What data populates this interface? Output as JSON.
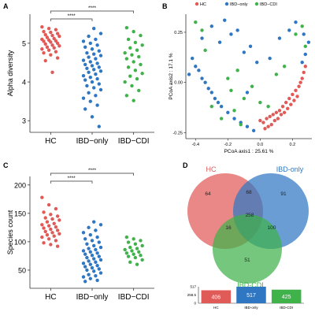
{
  "panels": {
    "A": {
      "letter": "A"
    },
    "B": {
      "letter": "B"
    },
    "C": {
      "letter": "C"
    },
    "D": {
      "letter": "D"
    }
  },
  "colors": {
    "HC": "#e05a58",
    "IBD-only": "#2f77c2",
    "IBD-CDI": "#3fb24a"
  },
  "chart_data": [
    {
      "panel": "A",
      "type": "scatter",
      "title": "",
      "xlabel": "",
      "ylabel": "Alpha diversity",
      "categories": [
        "HC",
        "IBD−only",
        "IBD−CDI"
      ],
      "ylim": [
        2.7,
        5.75
      ],
      "yticks": [
        "3",
        "4",
        "5"
      ],
      "yticks_values": [
        3,
        4,
        5
      ],
      "significance": [
        {
          "from": 0,
          "to": 1,
          "label": "****"
        },
        {
          "from": 0,
          "to": 2,
          "label": "****"
        }
      ],
      "series": [
        {
          "group": "HC",
          "values": [
            5.42,
            5.38,
            5.35,
            5.3,
            5.28,
            5.25,
            5.22,
            5.2,
            5.18,
            5.15,
            5.12,
            5.1,
            5.08,
            5.06,
            5.05,
            5.03,
            5.0,
            4.98,
            4.95,
            4.93,
            4.9,
            4.88,
            4.85,
            4.82,
            4.78,
            4.75,
            4.7,
            4.62,
            4.55,
            4.25
          ]
        },
        {
          "group": "IBD-only",
          "values": [
            5.38,
            5.25,
            5.18,
            5.1,
            5.05,
            5.0,
            4.95,
            4.9,
            4.85,
            4.8,
            4.75,
            4.72,
            4.68,
            4.64,
            4.6,
            4.56,
            4.52,
            4.48,
            4.45,
            4.42,
            4.38,
            4.35,
            4.32,
            4.28,
            4.25,
            4.2,
            4.16,
            4.12,
            4.08,
            4.05,
            4.0,
            3.95,
            3.9,
            3.85,
            3.8,
            3.72,
            3.65,
            3.58,
            3.5,
            3.4,
            3.3,
            3.1,
            2.85
          ]
        },
        {
          "group": "IBD-CDI",
          "values": [
            5.4,
            5.3,
            5.2,
            5.1,
            5.02,
            4.95,
            4.88,
            4.82,
            4.75,
            4.7,
            4.65,
            4.6,
            4.52,
            4.45,
            4.38,
            4.3,
            4.22,
            4.15,
            4.08,
            4.0,
            3.9,
            3.78,
            3.65,
            3.52
          ]
        }
      ]
    },
    {
      "panel": "B",
      "type": "scatter",
      "title": "",
      "xlabel": "PCoA axis1 : 25.61 %",
      "ylabel": "PCoA axis2 : 17.1 %",
      "legend": [
        "HC",
        "IBD−only",
        "IBD−CDI"
      ],
      "legend_placement": "top",
      "xlim": [
        -0.46,
        0.32
      ],
      "ylim": [
        -0.28,
        0.34
      ],
      "xticks": [
        "-0.4",
        "-0.2",
        "0.0",
        "0.2"
      ],
      "xticks_values": [
        -0.4,
        -0.2,
        0.0,
        0.2
      ],
      "yticks": [
        "0.25",
        "0.00",
        "-0.25"
      ],
      "yticks_values": [
        0.25,
        0.0,
        -0.25
      ],
      "series": [
        {
          "group": "HC",
          "points": [
            [
              0.02,
              -0.2
            ],
            [
              0.04,
              -0.18
            ],
            [
              0.06,
              -0.17
            ],
            [
              0.08,
              -0.16
            ],
            [
              0.1,
              -0.15
            ],
            [
              0.12,
              -0.14
            ],
            [
              0.14,
              -0.12
            ],
            [
              0.16,
              -0.1
            ],
            [
              0.18,
              -0.08
            ],
            [
              0.2,
              -0.06
            ],
            [
              0.22,
              -0.04
            ],
            [
              0.24,
              -0.02
            ],
            [
              0.25,
              0.0
            ],
            [
              0.26,
              0.02
            ],
            [
              0.05,
              -0.22
            ],
            [
              0.07,
              -0.21
            ],
            [
              0.09,
              -0.19
            ],
            [
              0.11,
              -0.18
            ],
            [
              0.13,
              -0.16
            ],
            [
              0.15,
              -0.15
            ],
            [
              0.17,
              -0.13
            ],
            [
              0.19,
              -0.11
            ],
            [
              0.21,
              -0.09
            ],
            [
              0.23,
              -0.07
            ],
            [
              0.0,
              -0.19
            ],
            [
              0.03,
              -0.23
            ],
            [
              0.27,
              0.05
            ],
            [
              0.28,
              0.08
            ]
          ]
        },
        {
          "group": "IBD-only",
          "points": [
            [
              -0.42,
              0.12
            ],
            [
              -0.4,
              0.08
            ],
            [
              -0.38,
              0.06
            ],
            [
              -0.36,
              0.02
            ],
            [
              -0.34,
              0.0
            ],
            [
              -0.32,
              -0.03
            ],
            [
              -0.3,
              -0.05
            ],
            [
              -0.28,
              -0.08
            ],
            [
              -0.26,
              -0.1
            ],
            [
              -0.24,
              -0.12
            ],
            [
              -0.2,
              -0.15
            ],
            [
              -0.16,
              -0.18
            ],
            [
              -0.12,
              -0.2
            ],
            [
              -0.08,
              -0.22
            ],
            [
              -0.04,
              -0.24
            ],
            [
              -0.36,
              0.22
            ],
            [
              -0.3,
              0.28
            ],
            [
              -0.25,
              0.2
            ],
            [
              -0.22,
              0.31
            ],
            [
              -0.18,
              0.24
            ],
            [
              -0.14,
              0.26
            ],
            [
              -0.1,
              0.15
            ],
            [
              -0.06,
              0.18
            ],
            [
              -0.02,
              0.1
            ],
            [
              0.06,
              0.12
            ],
            [
              0.12,
              0.22
            ],
            [
              0.18,
              0.26
            ],
            [
              0.22,
              0.3
            ],
            [
              0.27,
              0.24
            ],
            [
              0.3,
              0.2
            ],
            [
              0.28,
              0.14
            ],
            [
              0.26,
              0.1
            ],
            [
              -0.44,
              0.04
            ],
            [
              -0.08,
              -0.05
            ]
          ]
        },
        {
          "group": "IBD-CDI",
          "points": [
            [
              -0.4,
              0.3
            ],
            [
              -0.36,
              0.26
            ],
            [
              -0.2,
              0.02
            ],
            [
              -0.18,
              -0.04
            ],
            [
              -0.16,
              -0.14
            ],
            [
              -0.14,
              0.06
            ],
            [
              -0.1,
              -0.08
            ],
            [
              -0.05,
              -0.02
            ],
            [
              0.0,
              -0.1
            ],
            [
              0.05,
              -0.12
            ],
            [
              0.1,
              0.04
            ],
            [
              0.15,
              0.08
            ],
            [
              0.22,
              0.24
            ],
            [
              0.26,
              0.28
            ],
            [
              -0.24,
              -0.18
            ],
            [
              -0.3,
              -0.12
            ],
            [
              -0.12,
              -0.21
            ],
            [
              0.28,
              0.18
            ],
            [
              -0.34,
              0.16
            ]
          ]
        }
      ]
    },
    {
      "panel": "C",
      "type": "scatter",
      "title": "",
      "xlabel": "",
      "ylabel": "Species count",
      "categories": [
        "HC",
        "IBD−only",
        "IBD−CDI"
      ],
      "ylim": [
        18,
        215
      ],
      "yticks": [
        "50",
        "100",
        "150",
        "200"
      ],
      "yticks_values": [
        50,
        100,
        150,
        200
      ],
      "significance": [
        {
          "from": 0,
          "to": 1,
          "label": "****"
        },
        {
          "from": 0,
          "to": 2,
          "label": "****"
        }
      ],
      "series": [
        {
          "group": "HC",
          "values": [
            178,
            165,
            158,
            152,
            148,
            145,
            142,
            140,
            138,
            135,
            132,
            130,
            128,
            126,
            124,
            122,
            120,
            118,
            116,
            114,
            112,
            110,
            108,
            105,
            102,
            98,
            95,
            92
          ]
        },
        {
          "group": "IBD-only",
          "values": [
            135,
            130,
            125,
            120,
            116,
            112,
            108,
            105,
            102,
            99,
            96,
            93,
            90,
            88,
            86,
            84,
            82,
            80,
            78,
            76,
            74,
            72,
            70,
            68,
            66,
            64,
            62,
            60,
            58,
            56,
            54,
            52,
            50,
            48,
            45,
            42,
            40,
            38,
            35,
            32,
            30
          ]
        },
        {
          "group": "IBD-CDI",
          "values": [
            108,
            105,
            102,
            99,
            96,
            93,
            90,
            88,
            86,
            84,
            82,
            80,
            78,
            76,
            74,
            72,
            68,
            64,
            60
          ]
        }
      ]
    },
    {
      "panel": "D",
      "type": "venn",
      "sets": [
        {
          "name": "HC",
          "label": "HC"
        },
        {
          "name": "IBD-only",
          "label": "IBD-only"
        },
        {
          "name": "IBD-CDI",
          "label": "IBD-CDI"
        }
      ],
      "regions": {
        "HC_only": "64",
        "IBDonly_only": "91",
        "CDI_only": "51",
        "HC_IBDonly": "68",
        "HC_CDI": "16",
        "IBDonly_CDI": "100",
        "all": "258"
      }
    },
    {
      "panel": "D",
      "type": "bar",
      "title": "",
      "categories": [
        "HC",
        "IBD-only",
        "IBD-CDI"
      ],
      "values": [
        406,
        517,
        425
      ],
      "value_labels": [
        "406",
        "517",
        "425"
      ],
      "ylim": [
        0,
        517
      ],
      "yticks": [
        "517",
        "258.5",
        "0"
      ],
      "yticks_values": [
        517,
        258.5,
        0
      ]
    }
  ]
}
